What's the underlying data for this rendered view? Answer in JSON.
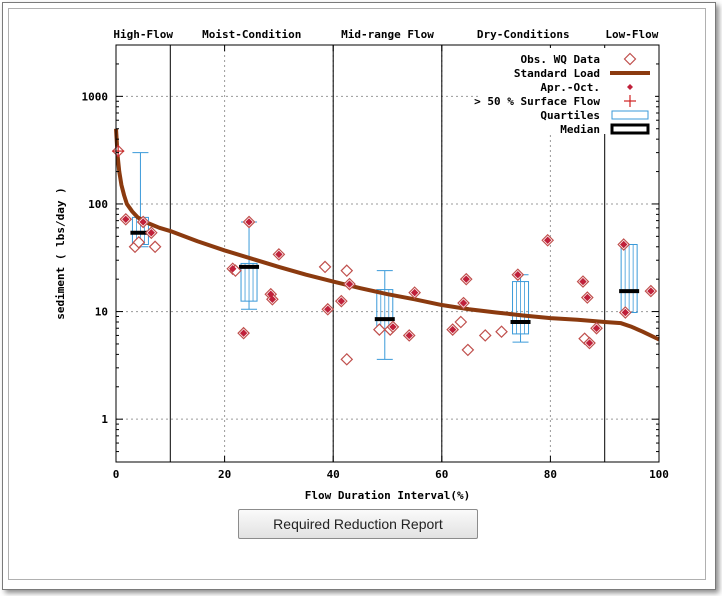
{
  "button": {
    "label": "Required Reduction Report"
  },
  "chart_data": {
    "type": "scatter",
    "xlabel": "Flow Duration Interval(%)",
    "ylabel": "sediment ( lbs/day )",
    "xlim": [
      0,
      100
    ],
    "ylim": [
      0.4,
      3000
    ],
    "yscale": "log",
    "xticks": [
      0,
      20,
      40,
      60,
      80,
      100
    ],
    "yticks": [
      1,
      10,
      100,
      1000
    ],
    "grid": true,
    "legend_position": "top-right",
    "zones": [
      {
        "label": "High-Flow",
        "start": 0,
        "end": 10
      },
      {
        "label": "Moist-Condition",
        "start": 10,
        "end": 40
      },
      {
        "label": "Mid-range Flow",
        "start": 40,
        "end": 60
      },
      {
        "label": "Dry-Conditions",
        "start": 60,
        "end": 90
      },
      {
        "label": "Low-Flow",
        "start": 90,
        "end": 100
      }
    ],
    "legend": [
      "Obs. WQ Data",
      "Standard Load",
      "Apr.-Oct.",
      "> 50 % Surface Flow",
      "Quartiles",
      "Median"
    ],
    "colors": {
      "obs": "#c0504d",
      "load": "#8b3a0f",
      "aprOct": "#c0203a",
      "surface": "#d02020",
      "quartile": "#3a9ad9",
      "median": "#000000",
      "grid": "#9a9a9a"
    },
    "standard_load": {
      "x": [
        0,
        0.3,
        0.6,
        1,
        1.5,
        2,
        3,
        4,
        5,
        6,
        8,
        10,
        15,
        20,
        25,
        30,
        35,
        40,
        45,
        50,
        55,
        60,
        65,
        70,
        75,
        80,
        85,
        90,
        93,
        95,
        97,
        100
      ],
      "y": [
        500,
        280,
        200,
        150,
        120,
        100,
        85,
        75,
        70,
        66,
        60,
        56,
        45,
        37,
        31,
        26,
        22,
        19,
        16.5,
        14.5,
        13,
        11.5,
        10.5,
        9.8,
        9.2,
        8.7,
        8.4,
        8.0,
        7.8,
        7.2,
        6.5,
        5.5
      ]
    },
    "observations": [
      {
        "x": 0.4,
        "y": 310
      },
      {
        "x": 1.8,
        "y": 72
      },
      {
        "x": 3.5,
        "y": 40
      },
      {
        "x": 4.2,
        "y": 44
      },
      {
        "x": 5.0,
        "y": 68
      },
      {
        "x": 6.5,
        "y": 54
      },
      {
        "x": 7.2,
        "y": 40
      },
      {
        "x": 21.5,
        "y": 25
      },
      {
        "x": 22,
        "y": 24
      },
      {
        "x": 23.5,
        "y": 6.3
      },
      {
        "x": 24.5,
        "y": 68
      },
      {
        "x": 28.5,
        "y": 14.5
      },
      {
        "x": 28.8,
        "y": 13
      },
      {
        "x": 30,
        "y": 34
      },
      {
        "x": 38.5,
        "y": 26
      },
      {
        "x": 39,
        "y": 10.5
      },
      {
        "x": 41.5,
        "y": 12.5
      },
      {
        "x": 42.5,
        "y": 24
      },
      {
        "x": 43,
        "y": 18
      },
      {
        "x": 42.5,
        "y": 3.6
      },
      {
        "x": 48.5,
        "y": 6.8
      },
      {
        "x": 50.5,
        "y": 6.8
      },
      {
        "x": 51,
        "y": 7.2
      },
      {
        "x": 54,
        "y": 6.0
      },
      {
        "x": 55,
        "y": 15
      },
      {
        "x": 62,
        "y": 6.8
      },
      {
        "x": 63.5,
        "y": 8.0
      },
      {
        "x": 64,
        "y": 12
      },
      {
        "x": 64.5,
        "y": 20
      },
      {
        "x": 64.8,
        "y": 4.4
      },
      {
        "x": 68,
        "y": 6.0
      },
      {
        "x": 71,
        "y": 6.5
      },
      {
        "x": 74,
        "y": 22
      },
      {
        "x": 79.5,
        "y": 46
      },
      {
        "x": 86,
        "y": 19
      },
      {
        "x": 86.3,
        "y": 5.6
      },
      {
        "x": 86.8,
        "y": 13.5
      },
      {
        "x": 87.2,
        "y": 5.1
      },
      {
        "x": 88.5,
        "y": 7.0
      },
      {
        "x": 93.5,
        "y": 42
      },
      {
        "x": 93.8,
        "y": 9.8
      },
      {
        "x": 98.5,
        "y": 15.5
      }
    ],
    "apr_oct": [
      {
        "x": 1.8,
        "y": 72
      },
      {
        "x": 5.0,
        "y": 68
      },
      {
        "x": 6.5,
        "y": 54
      },
      {
        "x": 21.5,
        "y": 25
      },
      {
        "x": 23.5,
        "y": 6.3
      },
      {
        "x": 24.5,
        "y": 68
      },
      {
        "x": 28.5,
        "y": 14.5
      },
      {
        "x": 28.8,
        "y": 13
      },
      {
        "x": 30,
        "y": 34
      },
      {
        "x": 39,
        "y": 10.5
      },
      {
        "x": 41.5,
        "y": 12.5
      },
      {
        "x": 43,
        "y": 18
      },
      {
        "x": 51,
        "y": 7.2
      },
      {
        "x": 54,
        "y": 6.0
      },
      {
        "x": 55,
        "y": 15
      },
      {
        "x": 62,
        "y": 6.8
      },
      {
        "x": 64,
        "y": 12
      },
      {
        "x": 64.5,
        "y": 20
      },
      {
        "x": 74,
        "y": 22
      },
      {
        "x": 79.5,
        "y": 46
      },
      {
        "x": 86,
        "y": 19
      },
      {
        "x": 86.8,
        "y": 13.5
      },
      {
        "x": 87.2,
        "y": 5.1
      },
      {
        "x": 88.5,
        "y": 7.0
      },
      {
        "x": 93.5,
        "y": 42
      },
      {
        "x": 93.8,
        "y": 9.8
      },
      {
        "x": 98.5,
        "y": 15.5
      }
    ],
    "surface_flow": [
      {
        "x": 0.4,
        "y": 310
      }
    ],
    "boxes": [
      {
        "x": 4.5,
        "min": 40,
        "q1": 42,
        "median": 54,
        "q3": 75,
        "max": 300
      },
      {
        "x": 24.5,
        "min": 10.5,
        "q1": 12.5,
        "median": 26,
        "q3": 28,
        "max": 68
      },
      {
        "x": 49.5,
        "min": 3.6,
        "q1": 6.8,
        "median": 8.5,
        "q3": 16,
        "max": 24
      },
      {
        "x": 74.5,
        "min": 5.2,
        "q1": 6.2,
        "median": 8.0,
        "q3": 19,
        "max": 22
      },
      {
        "x": 94.5,
        "min": 9.8,
        "q1": 9.8,
        "median": 15.5,
        "q3": 42,
        "max": 42
      }
    ]
  }
}
